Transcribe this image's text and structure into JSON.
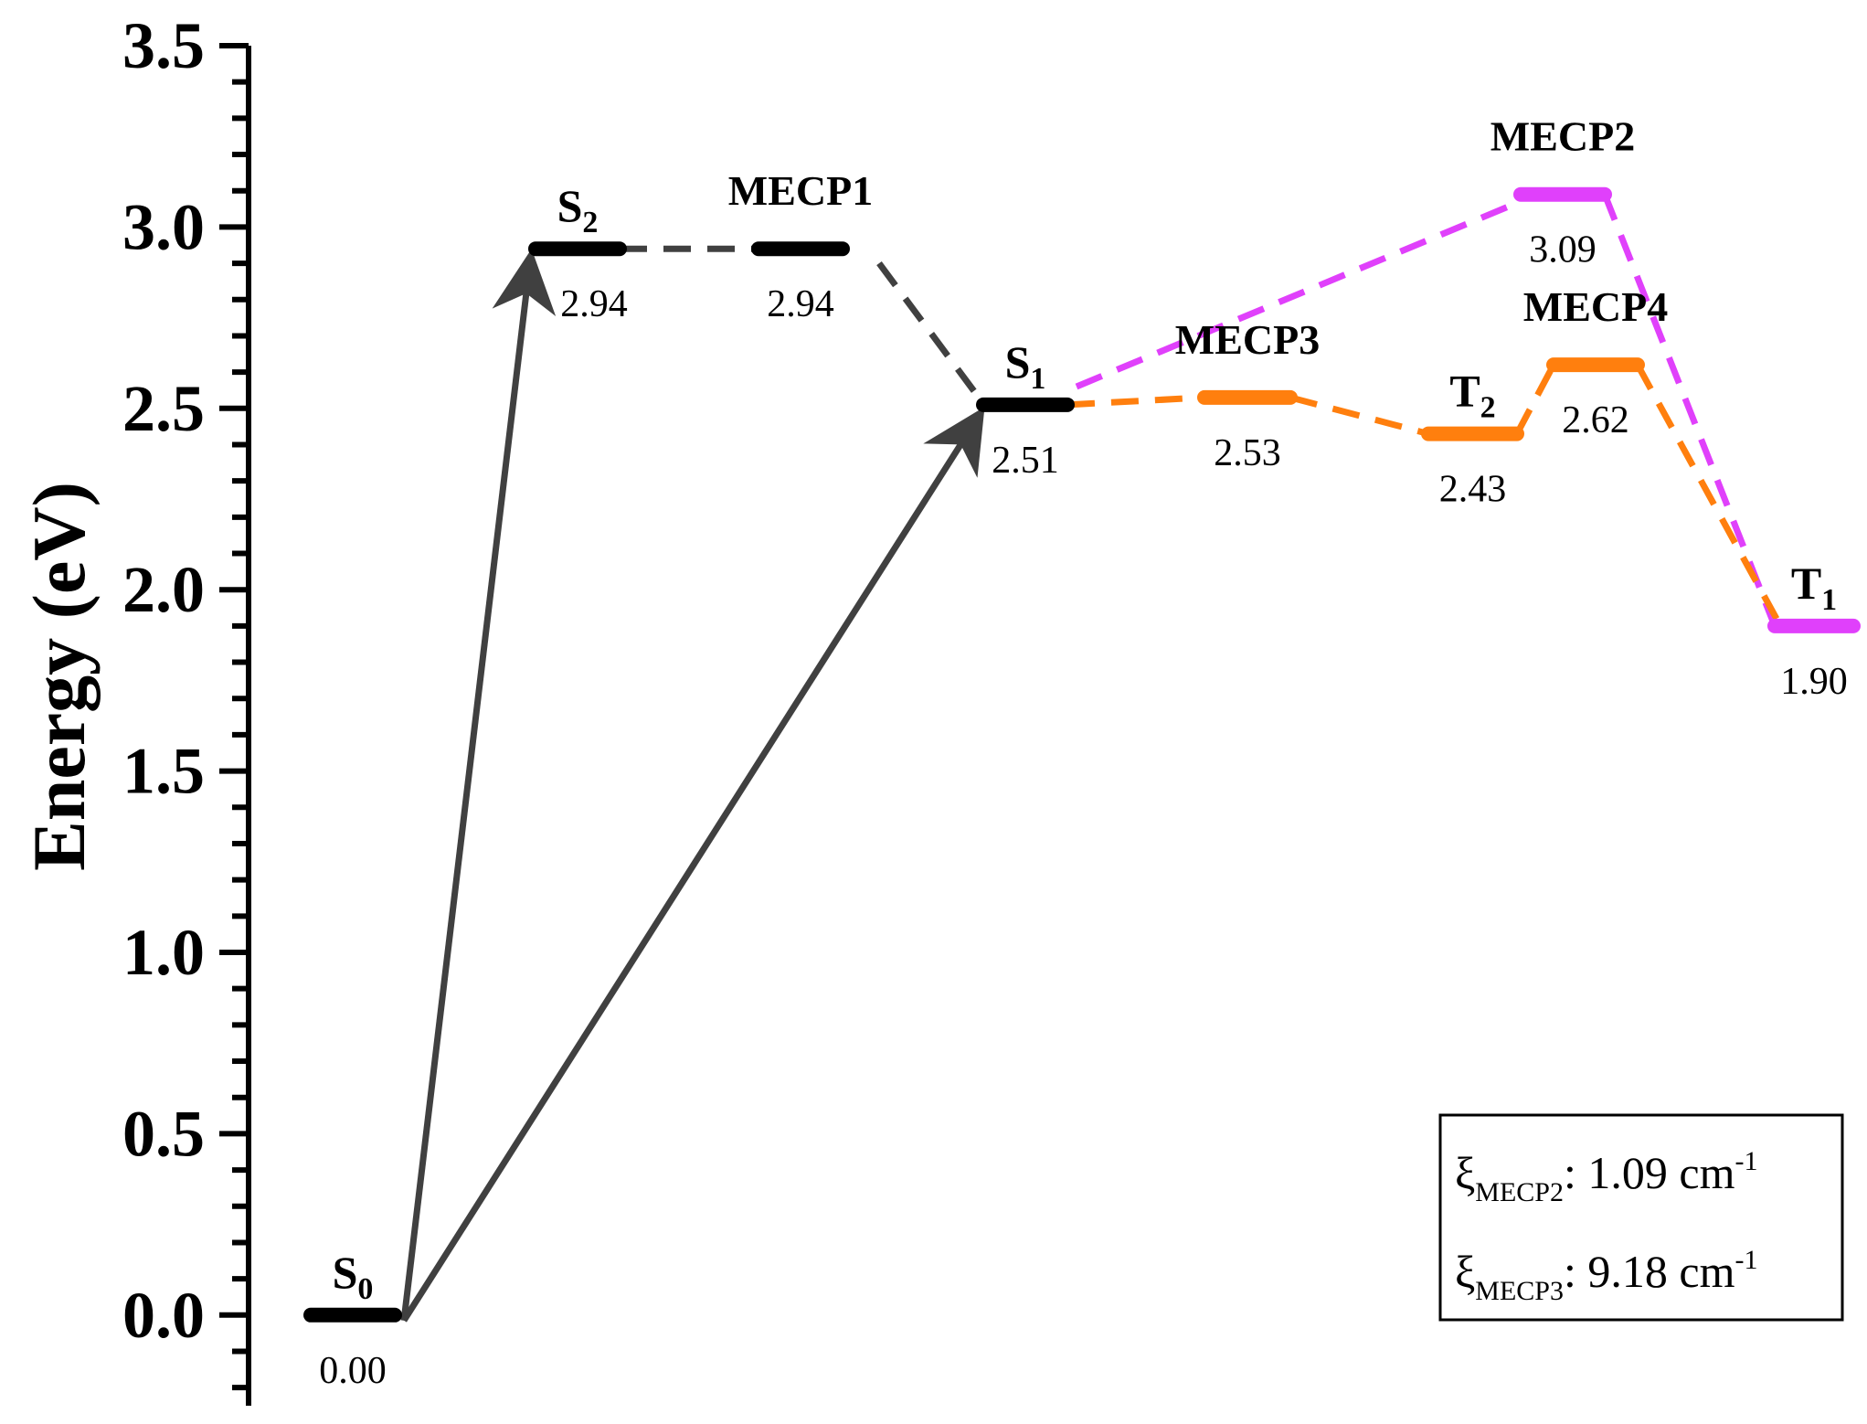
{
  "chart_data": {
    "type": "energy_diagram",
    "ylabel": "Energy (eV)",
    "ylim": [
      -0.25,
      3.5
    ],
    "yticks": [
      "0.0",
      "0.5",
      "1.0",
      "1.5",
      "2.0",
      "2.5",
      "3.0",
      "3.5"
    ],
    "states": [
      {
        "id": "S0",
        "label": "S",
        "sub": "0",
        "energy": 0.0,
        "value_label": "0.00",
        "color": "#000000",
        "label_style": "large"
      },
      {
        "id": "S2",
        "label": "S",
        "sub": "2",
        "energy": 2.94,
        "value_label": "2.94",
        "color": "#000000",
        "label_style": "large"
      },
      {
        "id": "MECP1",
        "label": "MECP1",
        "sub": "",
        "energy": 2.94,
        "value_label": "2.94",
        "color": "#000000",
        "label_style": "small"
      },
      {
        "id": "S1",
        "label": "S",
        "sub": "1",
        "energy": 2.51,
        "value_label": "2.51",
        "color": "#000000",
        "label_style": "large"
      },
      {
        "id": "MECP3",
        "label": "MECP3",
        "sub": "",
        "energy": 2.53,
        "value_label": "2.53",
        "color": "#ff7f0e",
        "label_style": "small"
      },
      {
        "id": "T2",
        "label": "T",
        "sub": "2",
        "energy": 2.43,
        "value_label": "2.43",
        "color": "#ff7f0e",
        "label_style": "large"
      },
      {
        "id": "MECP2",
        "label": "MECP2",
        "sub": "",
        "energy": 3.09,
        "value_label": "3.09",
        "color": "#e040fb",
        "label_style": "small"
      },
      {
        "id": "MECP4",
        "label": "MECP4",
        "sub": "",
        "energy": 2.62,
        "value_label": "2.62",
        "color": "#ff7f0e",
        "label_style": "small"
      },
      {
        "id": "T1",
        "label": "T",
        "sub": "1",
        "energy": 1.9,
        "value_label": "1.90",
        "color": "#e040fb",
        "label_style": "large"
      }
    ],
    "arrows": [
      {
        "from": "S0",
        "to": "S2",
        "color": "#404040"
      },
      {
        "from": "S0",
        "to": "S1",
        "color": "#404040"
      }
    ],
    "connections": [
      {
        "from": "S2",
        "to": "MECP1",
        "color": "#404040"
      },
      {
        "from": "MECP1",
        "to": "S1",
        "color": "#404040"
      },
      {
        "from": "S1",
        "to": "MECP2",
        "color": "#e040fb"
      },
      {
        "from": "MECP2",
        "to": "T1",
        "color": "#e040fb"
      },
      {
        "from": "S1",
        "to": "MECP3",
        "color": "#ff7f0e"
      },
      {
        "from": "MECP3",
        "to": "T2",
        "color": "#ff7f0e"
      },
      {
        "from": "T2",
        "to": "MECP4",
        "color": "#ff7f0e"
      },
      {
        "from": "MECP4",
        "to": "T1",
        "color": "#ff7f0e"
      }
    ],
    "legend": {
      "position": "bottom-right",
      "entries": [
        {
          "symbol": "ξ",
          "sub": "MECP2",
          "text": ": 1.09 cm",
          "sup": "-1"
        },
        {
          "symbol": "ξ",
          "sub": "MECP3",
          "text": ": 9.18 cm",
          "sup": "-1"
        }
      ]
    }
  }
}
